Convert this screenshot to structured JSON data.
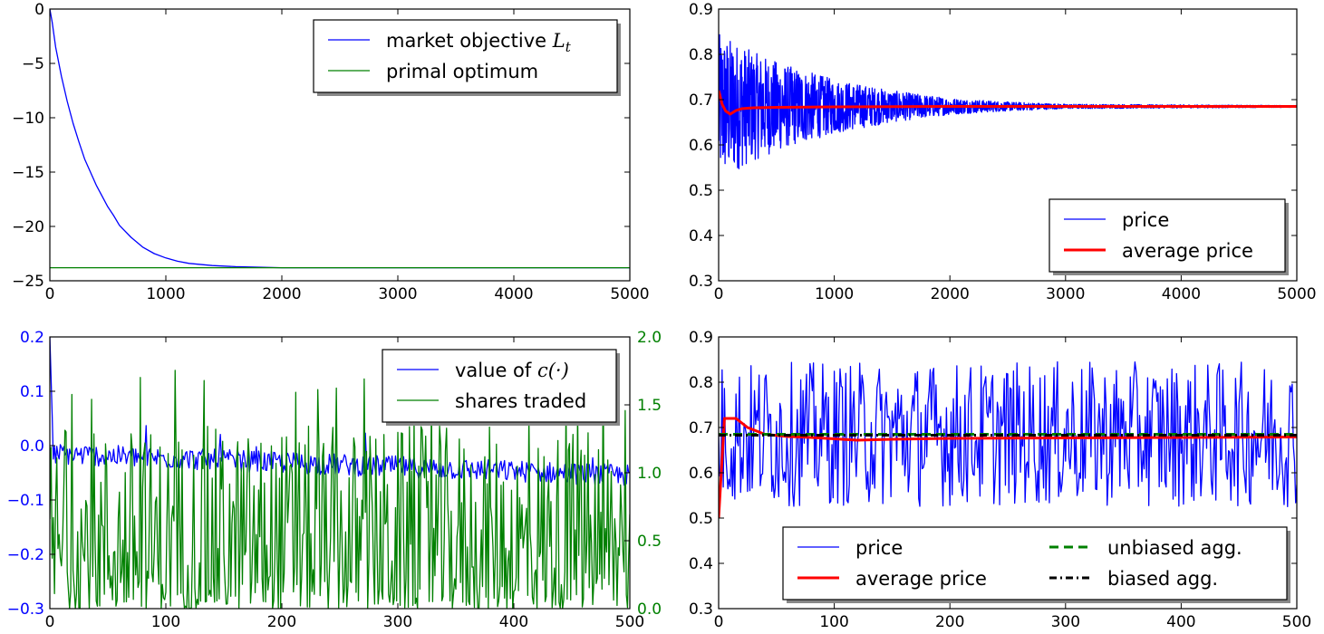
{
  "chart_data": [
    {
      "id": "objective",
      "type": "line",
      "xlim": [
        0,
        5000
      ],
      "ylim": [
        -25,
        0
      ],
      "xticks": [
        0,
        1000,
        2000,
        3000,
        4000,
        5000
      ],
      "yticks": [
        0,
        -5,
        -10,
        -15,
        -20,
        -25
      ],
      "xtick_labels": [
        "0",
        "1000",
        "2000",
        "3000",
        "4000",
        "5000"
      ],
      "ytick_labels": [
        "0",
        "−5",
        "−10",
        "−15",
        "−20",
        "−25"
      ],
      "legend_position": "top-right",
      "series": [
        {
          "name": "market objective L_t",
          "label": "market objective ",
          "math": "L",
          "math_sub": "t",
          "color": "#0000ff",
          "x": [
            0,
            20,
            50,
            100,
            150,
            200,
            250,
            300,
            400,
            500,
            550,
            600,
            700,
            800,
            900,
            1000,
            1100,
            1200,
            1400,
            1600,
            1800,
            2000,
            2200,
            2500,
            3000,
            4000,
            5000
          ],
          "y": [
            0,
            -1.2,
            -3.5,
            -6.2,
            -8.5,
            -10.5,
            -12.2,
            -13.8,
            -16.2,
            -18.2,
            -19.0,
            -19.9,
            -21.0,
            -21.9,
            -22.5,
            -22.9,
            -23.2,
            -23.4,
            -23.6,
            -23.7,
            -23.75,
            -23.8,
            -23.8,
            -23.8,
            -23.8,
            -23.8,
            -23.8
          ]
        },
        {
          "name": "primal optimum",
          "label": "primal optimum",
          "color": "#008000",
          "x": [
            0,
            5000
          ],
          "y": [
            -23.8,
            -23.8
          ]
        }
      ]
    },
    {
      "id": "price-long",
      "type": "line",
      "xlim": [
        0,
        5000
      ],
      "ylim": [
        0.3,
        0.9
      ],
      "xticks": [
        0,
        1000,
        2000,
        3000,
        4000,
        5000
      ],
      "yticks": [
        0.3,
        0.4,
        0.5,
        0.6,
        0.7,
        0.8,
        0.9
      ],
      "xtick_labels": [
        "0",
        "1000",
        "2000",
        "3000",
        "4000",
        "5000"
      ],
      "ytick_labels": [
        "0.3",
        "0.4",
        "0.5",
        "0.6",
        "0.7",
        "0.8",
        "0.9"
      ],
      "legend_position": "lower-right",
      "series": [
        {
          "name": "price",
          "label": "price",
          "color": "#0000ff",
          "style": "oscillating",
          "center": 0.685,
          "envelope_x": [
            0,
            100,
            300,
            600,
            1000,
            1500,
            2000,
            2500,
            3000,
            5000
          ],
          "envelope_amplitude": [
            0.16,
            0.15,
            0.12,
            0.09,
            0.06,
            0.035,
            0.018,
            0.01,
            0.005,
            0.002
          ]
        },
        {
          "name": "average price",
          "label": "average price",
          "color": "#ff0000",
          "x": [
            0,
            30,
            60,
            100,
            150,
            200,
            300,
            500,
            1000,
            2000,
            5000
          ],
          "y": [
            0.72,
            0.69,
            0.675,
            0.668,
            0.676,
            0.68,
            0.682,
            0.683,
            0.684,
            0.685,
            0.685
          ]
        }
      ]
    },
    {
      "id": "cost-shares",
      "type": "line",
      "xlim": [
        0,
        500
      ],
      "ylim": [
        -0.3,
        0.2
      ],
      "ylim_right": [
        0.0,
        2.0
      ],
      "xticks": [
        0,
        100,
        200,
        300,
        400,
        500
      ],
      "yticks": [
        0.2,
        0.1,
        0.0,
        -0.1,
        -0.2,
        -0.3
      ],
      "yticks_right": [
        2.0,
        1.5,
        1.0,
        0.5,
        0.0
      ],
      "xtick_labels": [
        "0",
        "100",
        "200",
        "300",
        "400",
        "500"
      ],
      "ytick_labels": [
        "0.2",
        "0.1",
        "0.0",
        "−0.1",
        "−0.2",
        "−0.3"
      ],
      "ytick_labels_right": [
        "2.0",
        "1.5",
        "1.0",
        "0.5",
        "0.0"
      ],
      "left_axis_color": "#0000ff",
      "right_axis_color": "#008000",
      "legend_position": "top-right",
      "series": [
        {
          "name": "value of c(·)",
          "label": "value of ",
          "math": "c(·)",
          "color": "#0000ff",
          "axis": "left",
          "style": "noise",
          "center": -0.015,
          "trend": -0.04,
          "amplitude": 0.02,
          "start": 0.2
        },
        {
          "name": "shares traded",
          "label": "shares traded",
          "color": "#008000",
          "axis": "right",
          "style": "spiky",
          "min": 0.0,
          "max": 1.8,
          "typical": 0.3
        }
      ]
    },
    {
      "id": "price-short",
      "type": "line",
      "xlim": [
        0,
        500
      ],
      "ylim": [
        0.3,
        0.9
      ],
      "xticks": [
        0,
        100,
        200,
        300,
        400,
        500
      ],
      "yticks": [
        0.3,
        0.4,
        0.5,
        0.6,
        0.7,
        0.8,
        0.9
      ],
      "xtick_labels": [
        "0",
        "100",
        "200",
        "300",
        "400",
        "500"
      ],
      "ytick_labels": [
        "0.3",
        "0.4",
        "0.5",
        "0.6",
        "0.7",
        "0.8",
        "0.9"
      ],
      "legend_position": "lower-right",
      "series": [
        {
          "name": "price",
          "label": "price",
          "color": "#0000ff",
          "style": "oscillating-flat",
          "center": 0.685,
          "amplitude": 0.16
        },
        {
          "name": "average price",
          "label": "average price",
          "color": "#ff0000",
          "x": [
            0,
            5,
            15,
            25,
            40,
            60,
            80,
            100,
            120,
            150,
            200,
            300,
            400,
            500
          ],
          "y": [
            0.5,
            0.72,
            0.72,
            0.7,
            0.685,
            0.68,
            0.678,
            0.675,
            0.672,
            0.674,
            0.676,
            0.677,
            0.678,
            0.679
          ]
        },
        {
          "name": "unbiased agg.",
          "label": "unbiased agg.",
          "color": "#008000",
          "dash": "dashed",
          "x": [
            0,
            500
          ],
          "y": [
            0.685,
            0.685
          ]
        },
        {
          "name": "biased agg.",
          "label": "biased agg.",
          "color": "#000000",
          "dash": "dashdot",
          "x": [
            0,
            500
          ],
          "y": [
            0.683,
            0.683
          ]
        }
      ]
    }
  ]
}
